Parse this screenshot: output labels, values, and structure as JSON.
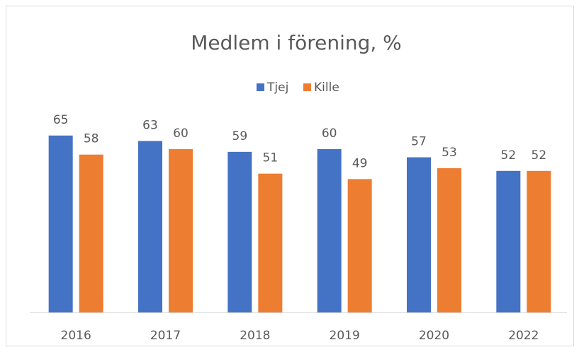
{
  "chart_data": {
    "type": "bar",
    "title": "Medlem i förening, %",
    "categories": [
      "2016",
      "2017",
      "2018",
      "2019",
      "2020",
      "2022"
    ],
    "series": [
      {
        "name": "Tjej",
        "color": "#4472c4",
        "values": [
          65,
          63,
          59,
          60,
          57,
          52
        ]
      },
      {
        "name": "Kille",
        "color": "#ed7d31",
        "values": [
          58,
          60,
          51,
          49,
          53,
          52
        ]
      }
    ],
    "legend": "top"
  }
}
